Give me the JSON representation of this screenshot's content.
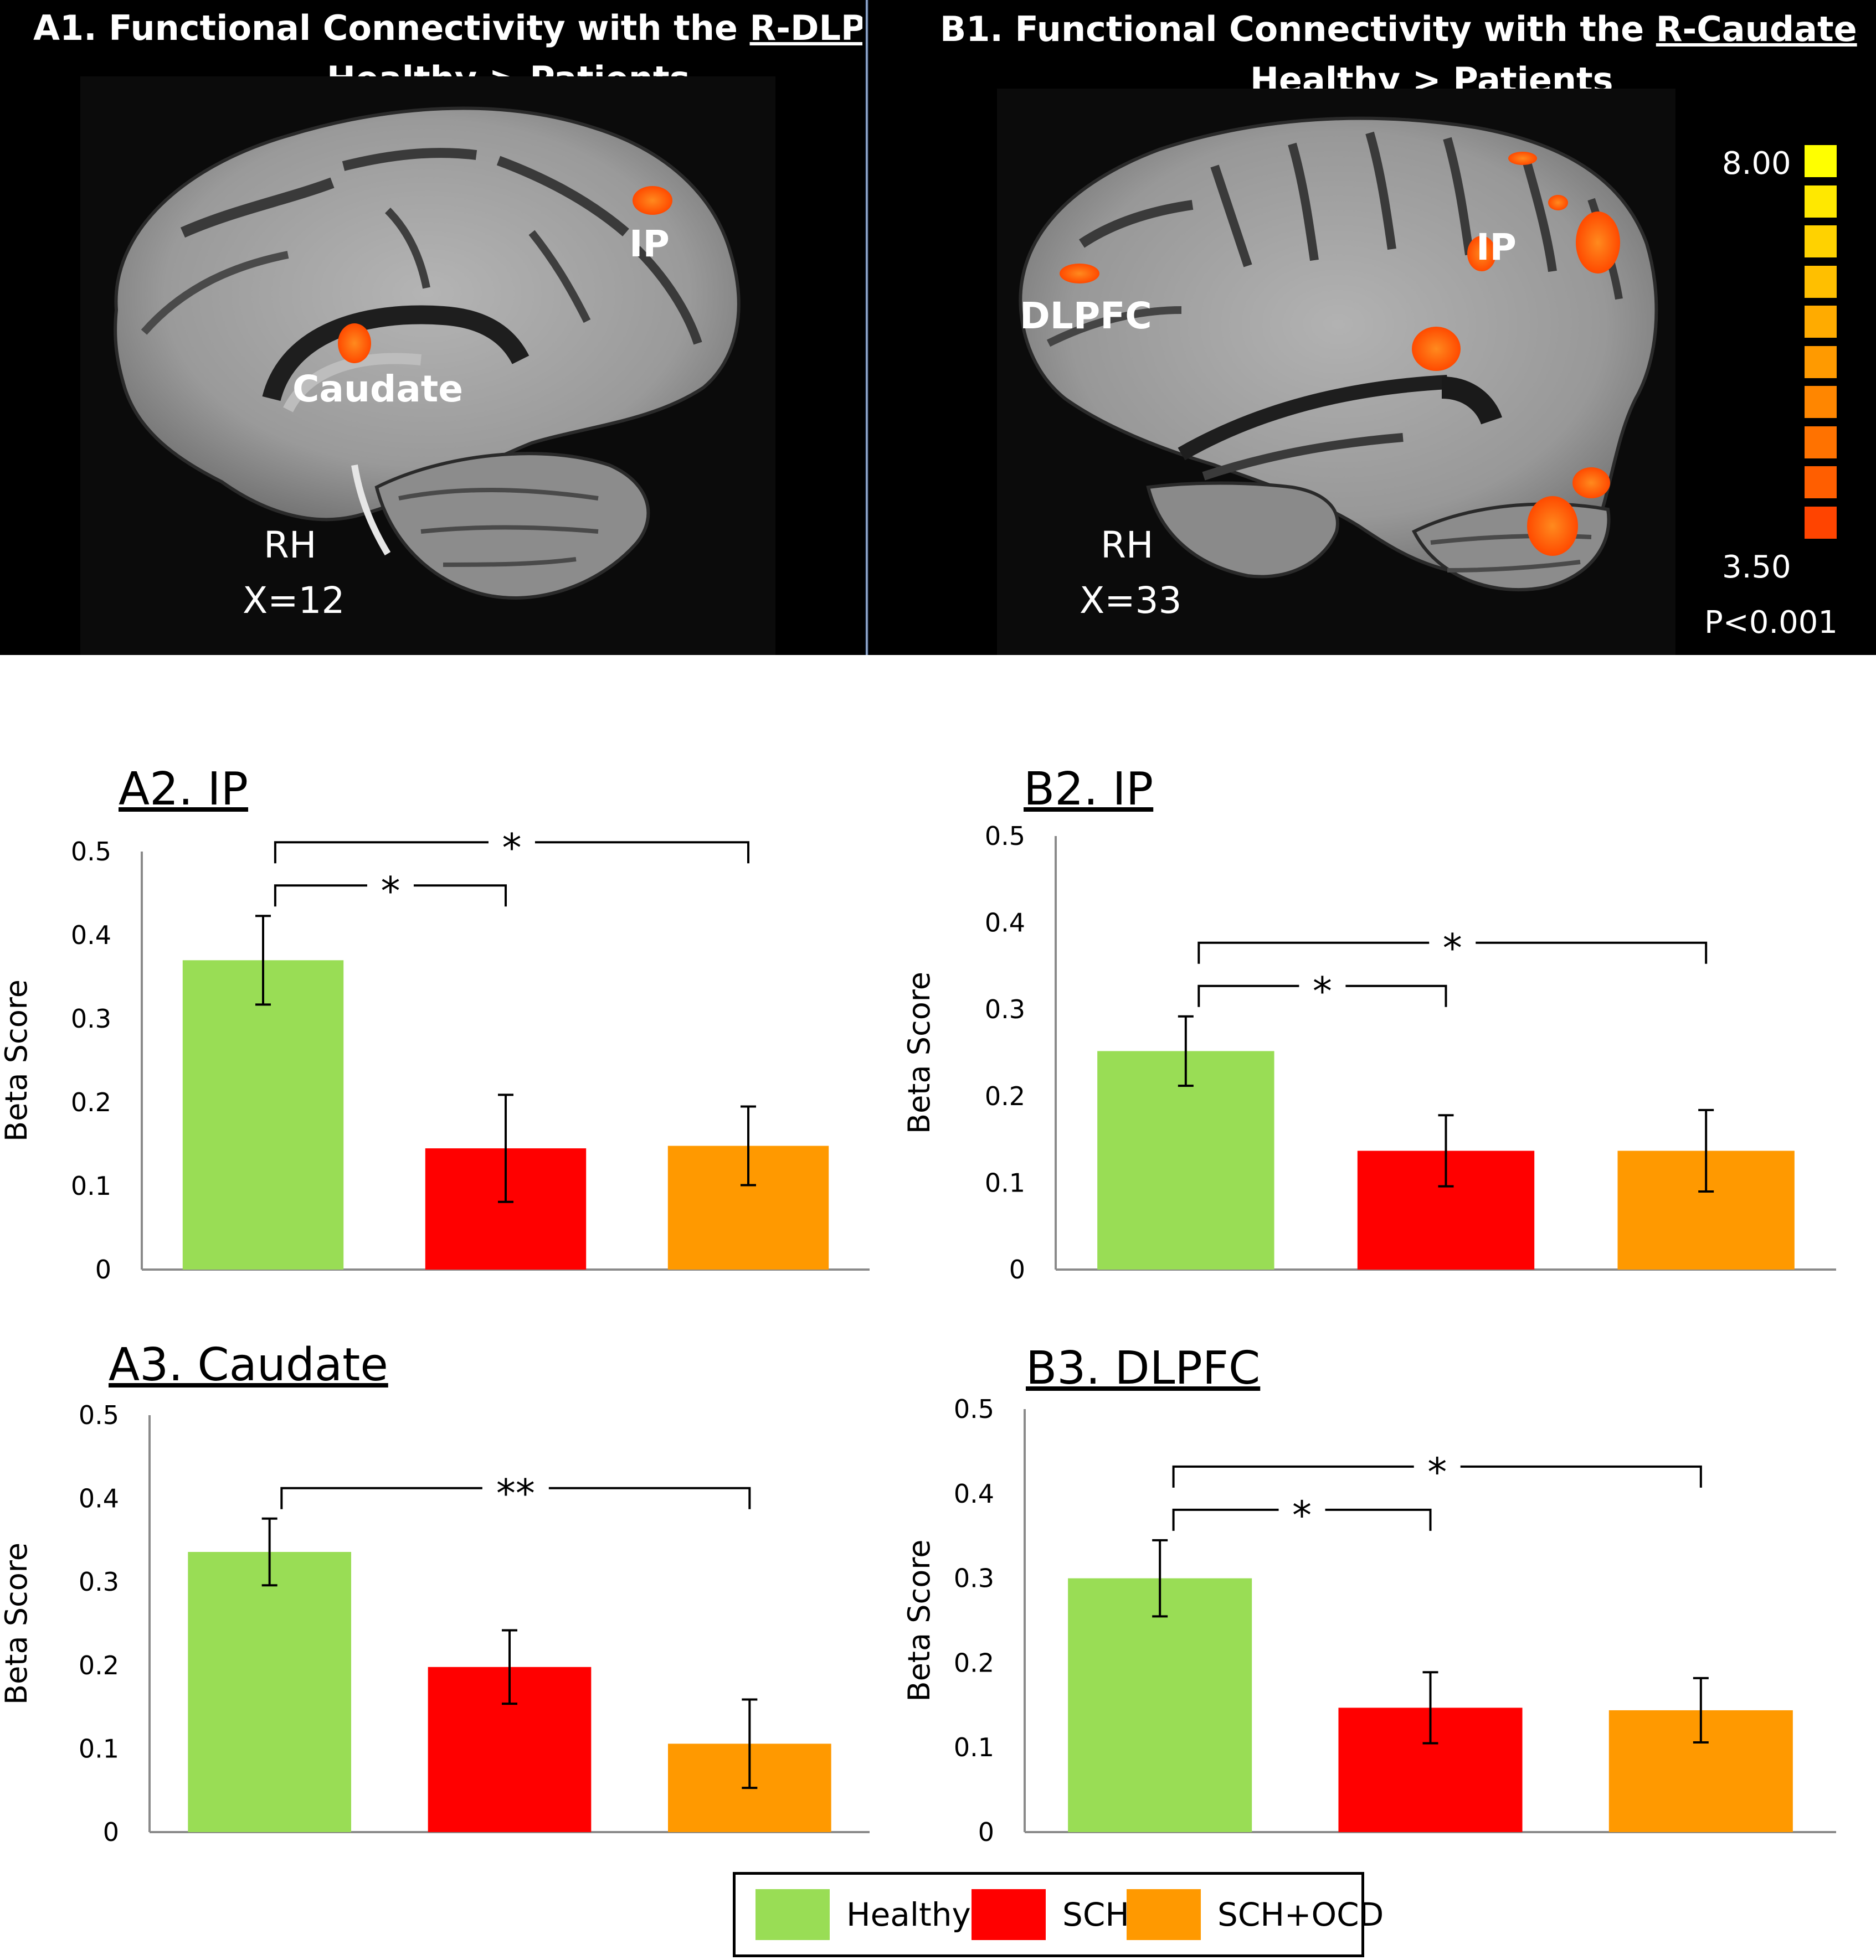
{
  "brain_panels": {
    "a": {
      "title_prefix": "A1. Functional Connectivity with the ",
      "title_seed": "R-DLPFC",
      "subtitle": "Healthy > Patients",
      "labels": {
        "ip": "IP",
        "caudate": "Caudate",
        "hemisphere": "RH",
        "coordinate": "X=12"
      }
    },
    "b": {
      "title_prefix": "B1. Functional Connectivity with the ",
      "title_seed": "R-Caudate",
      "subtitle": "Healthy > Patients",
      "labels": {
        "ip": "IP",
        "dlpfc": "DLPFC",
        "hemisphere": "RH",
        "coordinate": "X=33"
      }
    },
    "color_scale": {
      "max_label": "8.00",
      "min_label": "3.50",
      "threshold_label": "P<0.001",
      "colors": [
        "#ffff00",
        "#ffe800",
        "#ffd200",
        "#ffbf00",
        "#ffab00",
        "#ff9a00",
        "#ff8600",
        "#ff7200",
        "#ff5e00",
        "#ff4400"
      ]
    }
  },
  "colors": {
    "healthy": "#99dd55",
    "sch": "#ff0000",
    "sch_ocd": "#ff9900"
  },
  "chart_data": [
    {
      "id": "A2",
      "type": "bar",
      "title": "A2. IP",
      "ylabel": "Beta Score",
      "ylim": [
        0,
        0.5
      ],
      "yticks": [
        "0",
        "0.1",
        "0.2",
        "0.3",
        "0.4",
        "0.5"
      ],
      "categories": [
        "Healthy",
        "SCH",
        "SCH+OCD"
      ],
      "values": [
        0.37,
        0.145,
        0.148
      ],
      "errors": [
        0.053,
        0.064,
        0.047
      ],
      "significance": [
        {
          "from": 0,
          "to": 1,
          "label": "*"
        },
        {
          "from": 0,
          "to": 2,
          "label": "*"
        }
      ]
    },
    {
      "id": "B2",
      "type": "bar",
      "title": "B2. IP",
      "ylabel": "Beta Score",
      "ylim": [
        0,
        0.5
      ],
      "yticks": [
        "0",
        "0.1",
        "0.2",
        "0.3",
        "0.4",
        "0.5"
      ],
      "categories": [
        "Healthy",
        "SCH",
        "SCH+OCD"
      ],
      "values": [
        0.252,
        0.137,
        0.137
      ],
      "errors": [
        0.04,
        0.041,
        0.047
      ],
      "significance": [
        {
          "from": 0,
          "to": 1,
          "label": "*"
        },
        {
          "from": 0,
          "to": 2,
          "label": "*"
        }
      ]
    },
    {
      "id": "A3",
      "type": "bar",
      "title": "A3. Caudate",
      "ylabel": "Beta Score",
      "ylim": [
        0,
        0.5
      ],
      "yticks": [
        "0",
        "0.1",
        "0.2",
        "0.3",
        "0.4",
        "0.5"
      ],
      "categories": [
        "Healthy",
        "SCH",
        "SCH+OCD"
      ],
      "values": [
        0.336,
        0.198,
        0.106
      ],
      "errors": [
        0.04,
        0.044,
        0.053
      ],
      "significance": [
        {
          "from": 0,
          "to": 2,
          "label": "**"
        }
      ]
    },
    {
      "id": "B3",
      "type": "bar",
      "title": "B3. DLPFC",
      "ylabel": "Beta Score",
      "ylim": [
        0,
        0.5
      ],
      "yticks": [
        "0",
        "0.1",
        "0.2",
        "0.3",
        "0.4",
        "0.5"
      ],
      "categories": [
        "Healthy",
        "SCH",
        "SCH+OCD"
      ],
      "values": [
        0.3,
        0.147,
        0.144
      ],
      "errors": [
        0.045,
        0.042,
        0.038
      ],
      "significance": [
        {
          "from": 0,
          "to": 1,
          "label": "*"
        },
        {
          "from": 0,
          "to": 2,
          "label": "*"
        }
      ]
    }
  ],
  "legend": [
    {
      "label": "Healthy",
      "color": "#99dd55"
    },
    {
      "label": "SCH",
      "color": "#ff0000"
    },
    {
      "label": "SCH+OCD",
      "color": "#ff9900"
    }
  ]
}
